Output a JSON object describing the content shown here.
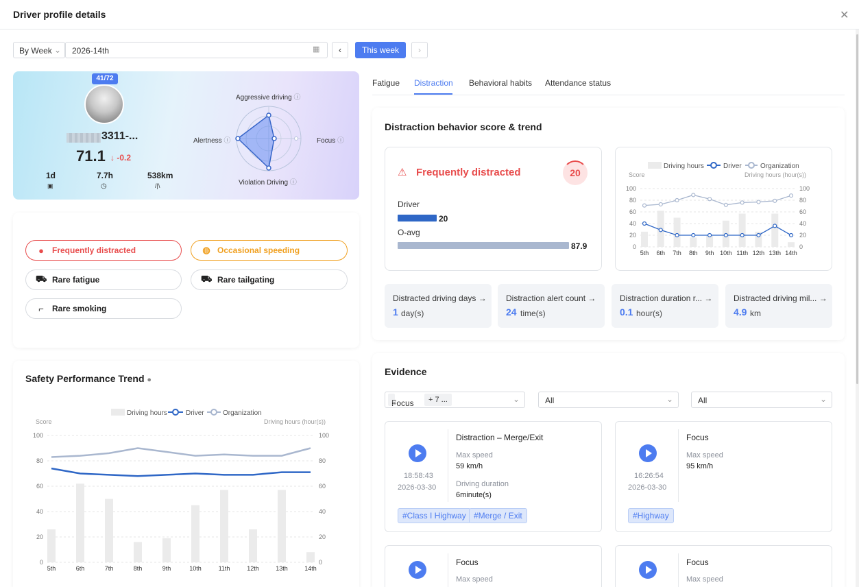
{
  "window": {
    "title": "Driver profile details"
  },
  "toolbar": {
    "period": "By Week",
    "date": "2026-14th",
    "this_week": "This week"
  },
  "profile": {
    "rank": "41/72",
    "name": "3311-...",
    "score": "71.1",
    "delta": "↓ -0.2",
    "stats": [
      {
        "value": "1d"
      },
      {
        "value": "7.7h"
      },
      {
        "value": "538km"
      }
    ],
    "radar": {
      "top": "Aggressive driving",
      "left": "Alertness",
      "right": "Focus",
      "bottom": "Violation Driving"
    }
  },
  "behaviors": [
    {
      "label": "Frequently distracted",
      "style": "red"
    },
    {
      "label": "Occasional speeding",
      "style": "orange"
    },
    {
      "label": "Rare fatigue",
      "style": "plain"
    },
    {
      "label": "Rare tailgating",
      "style": "plain"
    },
    {
      "label": "Rare smoking",
      "style": "plain"
    }
  ],
  "tabs": [
    "Fatigue",
    "Distraction",
    "Behavioral habits",
    "Attendance status"
  ],
  "active_tab": "Distraction",
  "distraction": {
    "title": "Distraction behavior score & trend",
    "status": "Frequently distracted",
    "score": "20",
    "driver_label": "Driver",
    "driver_value": "20",
    "oavg_label": "O-avg",
    "oavg_value": "87.9",
    "stats": [
      {
        "label": "Distracted driving days",
        "value": "1",
        "unit": "day(s)"
      },
      {
        "label": "Distraction alert count",
        "value": "24",
        "unit": "time(s)"
      },
      {
        "label": "Distraction duration r...",
        "value": "0.1",
        "unit": "hour(s)"
      },
      {
        "label": "Distracted driving mil...",
        "value": "4.9",
        "unit": "km"
      }
    ]
  },
  "evidence": {
    "title": "Evidence",
    "filter1_tag": "Focus",
    "filter1_more": "+ 7 ...",
    "filter2": "All",
    "filter3": "All",
    "items": [
      {
        "title": "Distraction – Merge/Exit",
        "time": "18:58:43",
        "date": "2026-03-30",
        "speed_label": "Max speed",
        "speed": "59 km/h",
        "duration_label": "Driving duration",
        "duration": "6minute(s)",
        "tags": [
          "#Class I Highway",
          "#Merge / Exit"
        ]
      },
      {
        "title": "Focus",
        "time": "16:26:54",
        "date": "2026-03-30",
        "speed_label": "Max speed",
        "speed": "95 km/h",
        "tags": [
          "#Highway"
        ]
      },
      {
        "title": "Focus",
        "speed_label": "Max speed"
      },
      {
        "title": "Focus",
        "speed_label": "Max speed"
      }
    ]
  },
  "safety": {
    "title": "Safety Performance Trend"
  },
  "chart_legend": {
    "hours": "Driving hours",
    "driver": "Driver",
    "org": "Organization",
    "left_axis": "Score",
    "right_axis": "Driving hours (hour(s))"
  },
  "chart_data": [
    {
      "type": "line",
      "title": "Safety Performance Trend",
      "categories": [
        "5th",
        "6th",
        "7th",
        "8th",
        "9th",
        "10th",
        "11th",
        "12th",
        "13th",
        "14th"
      ],
      "ylabel": "Score",
      "ylim": [
        0,
        100
      ],
      "y2label": "Driving hours (hour(s))",
      "y2lim": [
        0,
        100
      ],
      "series": [
        {
          "name": "Driving hours",
          "kind": "bar",
          "axis": "right",
          "values": [
            26,
            62,
            50,
            16,
            19,
            45,
            57,
            26,
            57,
            8
          ]
        },
        {
          "name": "Driver",
          "kind": "line",
          "values": [
            74,
            70,
            69,
            68,
            69,
            70,
            69,
            69,
            71,
            71
          ]
        },
        {
          "name": "Organization",
          "kind": "line",
          "values": [
            83,
            84,
            86,
            90,
            87,
            84,
            85,
            84,
            84,
            90
          ]
        }
      ],
      "grid": true,
      "legend": "top-center"
    },
    {
      "type": "line",
      "title": "",
      "categories": [
        "5th",
        "6th",
        "7th",
        "8th",
        "9th",
        "10th",
        "11th",
        "12th",
        "13th",
        "14th"
      ],
      "ylabel": "Score",
      "ylim": [
        0,
        100
      ],
      "y2label": "Driving hours (hour(s))",
      "y2lim": [
        0,
        100
      ],
      "series": [
        {
          "name": "Driving hours",
          "kind": "bar",
          "axis": "right",
          "values": [
            26,
            62,
            50,
            16,
            19,
            45,
            57,
            26,
            57,
            8
          ]
        },
        {
          "name": "Driver",
          "kind": "line",
          "values": [
            40,
            29,
            20,
            20,
            20,
            20,
            20,
            20,
            36,
            20
          ]
        },
        {
          "name": "Organization",
          "kind": "line",
          "values": [
            71,
            73,
            80,
            89,
            82,
            72,
            76,
            77,
            79,
            88
          ]
        }
      ],
      "grid": true,
      "legend": "top-center"
    }
  ],
  "colors": {
    "accent": "#4d7cf0",
    "danger": "#e84c4c",
    "warning": "#f0a020",
    "driver_line": "#2f67c6",
    "org_line": "#a9b7cf",
    "bar": "#ebebeb"
  },
  "icons": {
    "close": "close-icon",
    "calendar": "calendar-icon",
    "info": "info-icon",
    "warning": "warning-icon",
    "play": "play-icon"
  }
}
